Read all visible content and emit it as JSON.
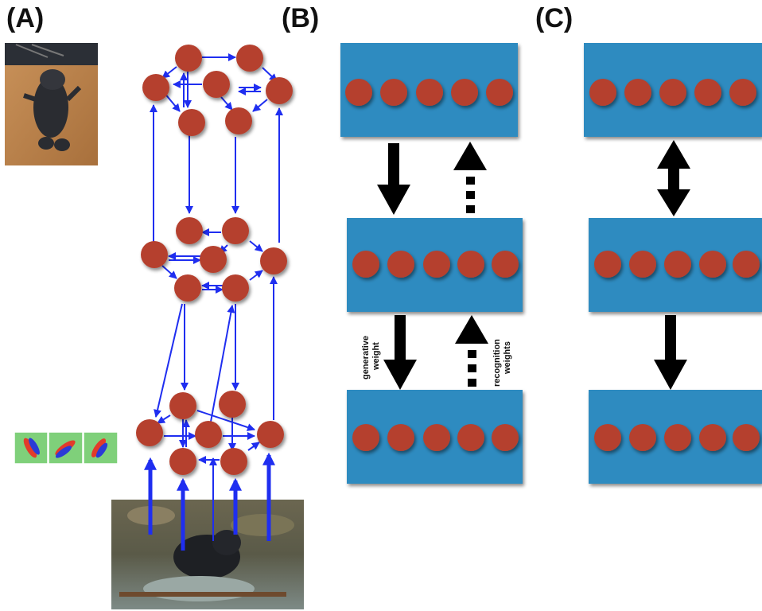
{
  "panels": {
    "a": {
      "label": "(A)"
    },
    "b": {
      "label": "(B)",
      "generative_label": [
        "generative",
        "weight"
      ],
      "recognition_label": [
        "recognition",
        "weights"
      ]
    },
    "c": {
      "label": "(C)"
    }
  },
  "colors": {
    "node": "#b5412e",
    "node_shadow": "#7a2a1c",
    "network_arrow": "#1f2ef0",
    "layer_fill": "#2d8bc0",
    "layer_arrow": "#000000"
  },
  "images": {
    "top_photo": "cat-photo-icon",
    "middle_filters": "gabor-filter-icon",
    "bottom_photo": "outdoor-animal-photo-icon"
  }
}
